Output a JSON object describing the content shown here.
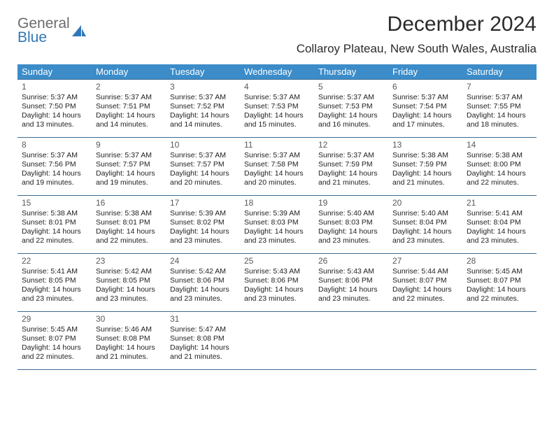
{
  "brand": {
    "word1": "General",
    "word2": "Blue"
  },
  "title": "December 2024",
  "location": "Collaroy Plateau, New South Wales, Australia",
  "colors": {
    "header_bg": "#3b8cc9",
    "header_text": "#ffffff",
    "rule": "#3b6a92",
    "logo_grey": "#6b6b6b",
    "logo_blue": "#2f78b7"
  },
  "weekdays": [
    "Sunday",
    "Monday",
    "Tuesday",
    "Wednesday",
    "Thursday",
    "Friday",
    "Saturday"
  ],
  "days": [
    {
      "n": "1",
      "sr": "5:37 AM",
      "ss": "7:50 PM",
      "dl": "14 hours and 13 minutes."
    },
    {
      "n": "2",
      "sr": "5:37 AM",
      "ss": "7:51 PM",
      "dl": "14 hours and 14 minutes."
    },
    {
      "n": "3",
      "sr": "5:37 AM",
      "ss": "7:52 PM",
      "dl": "14 hours and 14 minutes."
    },
    {
      "n": "4",
      "sr": "5:37 AM",
      "ss": "7:53 PM",
      "dl": "14 hours and 15 minutes."
    },
    {
      "n": "5",
      "sr": "5:37 AM",
      "ss": "7:53 PM",
      "dl": "14 hours and 16 minutes."
    },
    {
      "n": "6",
      "sr": "5:37 AM",
      "ss": "7:54 PM",
      "dl": "14 hours and 17 minutes."
    },
    {
      "n": "7",
      "sr": "5:37 AM",
      "ss": "7:55 PM",
      "dl": "14 hours and 18 minutes."
    },
    {
      "n": "8",
      "sr": "5:37 AM",
      "ss": "7:56 PM",
      "dl": "14 hours and 19 minutes."
    },
    {
      "n": "9",
      "sr": "5:37 AM",
      "ss": "7:57 PM",
      "dl": "14 hours and 19 minutes."
    },
    {
      "n": "10",
      "sr": "5:37 AM",
      "ss": "7:57 PM",
      "dl": "14 hours and 20 minutes."
    },
    {
      "n": "11",
      "sr": "5:37 AM",
      "ss": "7:58 PM",
      "dl": "14 hours and 20 minutes."
    },
    {
      "n": "12",
      "sr": "5:37 AM",
      "ss": "7:59 PM",
      "dl": "14 hours and 21 minutes."
    },
    {
      "n": "13",
      "sr": "5:38 AM",
      "ss": "7:59 PM",
      "dl": "14 hours and 21 minutes."
    },
    {
      "n": "14",
      "sr": "5:38 AM",
      "ss": "8:00 PM",
      "dl": "14 hours and 22 minutes."
    },
    {
      "n": "15",
      "sr": "5:38 AM",
      "ss": "8:01 PM",
      "dl": "14 hours and 22 minutes."
    },
    {
      "n": "16",
      "sr": "5:38 AM",
      "ss": "8:01 PM",
      "dl": "14 hours and 22 minutes."
    },
    {
      "n": "17",
      "sr": "5:39 AM",
      "ss": "8:02 PM",
      "dl": "14 hours and 23 minutes."
    },
    {
      "n": "18",
      "sr": "5:39 AM",
      "ss": "8:03 PM",
      "dl": "14 hours and 23 minutes."
    },
    {
      "n": "19",
      "sr": "5:40 AM",
      "ss": "8:03 PM",
      "dl": "14 hours and 23 minutes."
    },
    {
      "n": "20",
      "sr": "5:40 AM",
      "ss": "8:04 PM",
      "dl": "14 hours and 23 minutes."
    },
    {
      "n": "21",
      "sr": "5:41 AM",
      "ss": "8:04 PM",
      "dl": "14 hours and 23 minutes."
    },
    {
      "n": "22",
      "sr": "5:41 AM",
      "ss": "8:05 PM",
      "dl": "14 hours and 23 minutes."
    },
    {
      "n": "23",
      "sr": "5:42 AM",
      "ss": "8:05 PM",
      "dl": "14 hours and 23 minutes."
    },
    {
      "n": "24",
      "sr": "5:42 AM",
      "ss": "8:06 PM",
      "dl": "14 hours and 23 minutes."
    },
    {
      "n": "25",
      "sr": "5:43 AM",
      "ss": "8:06 PM",
      "dl": "14 hours and 23 minutes."
    },
    {
      "n": "26",
      "sr": "5:43 AM",
      "ss": "8:06 PM",
      "dl": "14 hours and 23 minutes."
    },
    {
      "n": "27",
      "sr": "5:44 AM",
      "ss": "8:07 PM",
      "dl": "14 hours and 22 minutes."
    },
    {
      "n": "28",
      "sr": "5:45 AM",
      "ss": "8:07 PM",
      "dl": "14 hours and 22 minutes."
    },
    {
      "n": "29",
      "sr": "5:45 AM",
      "ss": "8:07 PM",
      "dl": "14 hours and 22 minutes."
    },
    {
      "n": "30",
      "sr": "5:46 AM",
      "ss": "8:08 PM",
      "dl": "14 hours and 21 minutes."
    },
    {
      "n": "31",
      "sr": "5:47 AM",
      "ss": "8:08 PM",
      "dl": "14 hours and 21 minutes."
    }
  ],
  "labels": {
    "sunrise": "Sunrise: ",
    "sunset": "Sunset: ",
    "daylight": "Daylight: "
  }
}
